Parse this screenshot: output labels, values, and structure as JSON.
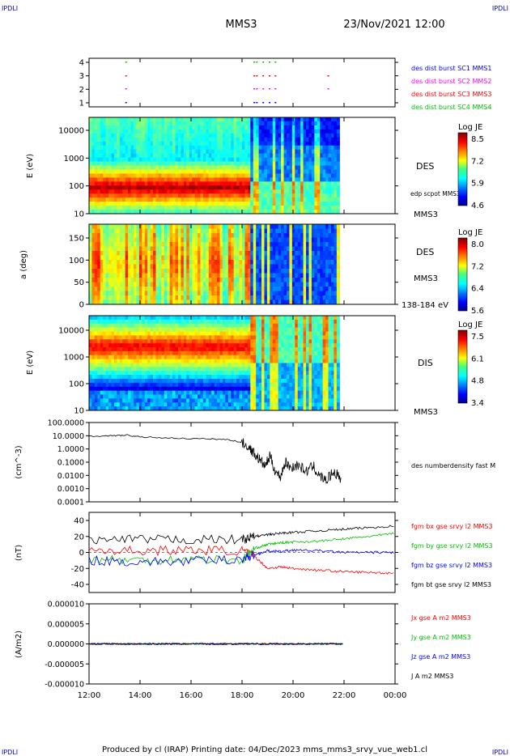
{
  "header": {
    "corner_tl": "IPDLI",
    "corner_tr": "IPDLI",
    "corner_bl": "IPDLI",
    "corner_br": "IPDLI",
    "mission": "MMS3",
    "datetime": "23/Nov/2021 12:00"
  },
  "footer": {
    "text": "Produced by cl (IRAP)   Printing date: 04/Dec/2023   mms_mms3_srvy_vue_web1.cl"
  },
  "time_axis": {
    "ticks": [
      "12:00",
      "14:00",
      "16:00",
      "18:00",
      "20:00",
      "22:00",
      "00:00"
    ],
    "range_hours": [
      12,
      24
    ]
  },
  "chart_data": [
    {
      "type": "scatter",
      "id": "burst",
      "y_ticks": [
        "4",
        "3",
        "2",
        "1"
      ],
      "legend": [
        {
          "label": "des dist burst SC1 MMS1",
          "color": "#0000ff"
        },
        {
          "label": "des dist burst SC2 MMS2",
          "color": "#ff00ff"
        },
        {
          "label": "des dist burst SC3 MMS3",
          "color": "#ff0000"
        },
        {
          "label": "des dist burst SC4 MMS4",
          "color": "#00c000"
        }
      ],
      "marks_hours": [
        13.42,
        18.45,
        18.55,
        18.8,
        19.05,
        19.28,
        21.35
      ]
    },
    {
      "type": "heatmap",
      "id": "des-energy",
      "ylabel": "E (eV)",
      "y_ticks": [
        "10000",
        "1000",
        "100",
        "10"
      ],
      "colorbar_title": "Log JE",
      "colorbar_ticks": [
        "8.5",
        "7.2",
        "5.9",
        "4.6"
      ],
      "labels": [
        "DES",
        "edp scpot MMS3",
        "MMS3"
      ]
    },
    {
      "type": "heatmap",
      "id": "des-pitch",
      "ylabel": "a (deg)",
      "y_ticks": [
        "150",
        "100",
        "50",
        "0"
      ],
      "colorbar_title": "Log JE",
      "colorbar_ticks": [
        "8.0",
        "7.2",
        "6.4",
        "5.6"
      ],
      "labels": [
        "DES",
        "MMS3",
        "138-184 eV"
      ]
    },
    {
      "type": "heatmap",
      "id": "dis-energy",
      "ylabel": "E (eV)",
      "y_ticks": [
        "10000",
        "1000",
        "100",
        "10"
      ],
      "colorbar_title": "Log JE",
      "colorbar_ticks": [
        "7.5",
        "6.1",
        "4.8",
        "3.4"
      ],
      "labels": [
        "DIS",
        "MMS3"
      ]
    },
    {
      "type": "line",
      "id": "density",
      "ylabel": "(cm^-3)",
      "y_ticks": [
        "100.0000",
        "10.0000",
        "1.0000",
        "0.1000",
        "0.0100",
        "0.0010",
        "0.0001"
      ],
      "ylim": [
        0.0001,
        100
      ],
      "series": [
        {
          "name": "des numberdensity fast M",
          "color": "#000000",
          "x": [
            12.0,
            13.0,
            13.5,
            14.0,
            15.0,
            16.0,
            17.0,
            17.5,
            18.0,
            18.3,
            18.5,
            18.7,
            18.9,
            19.1,
            19.3,
            19.5,
            19.7,
            19.9,
            20.2,
            20.5,
            20.8,
            21.0,
            21.3,
            21.6,
            21.9
          ],
          "values": [
            9,
            10,
            11,
            8,
            7,
            6,
            5.5,
            5,
            3,
            1.2,
            0.4,
            0.15,
            0.05,
            0.3,
            0.02,
            0.008,
            0.1,
            0.04,
            0.06,
            0.02,
            0.05,
            0.01,
            0.004,
            0.02,
            0.005
          ]
        }
      ]
    },
    {
      "type": "line",
      "id": "field",
      "ylabel": "(nT)",
      "y_ticks": [
        "40",
        "20",
        "0",
        "-20",
        "-40"
      ],
      "ylim": [
        -50,
        50
      ],
      "series": [
        {
          "name": "fgm bx gse srvy l2 MMS3",
          "color": "#ff0000",
          "x": [
            12,
            14,
            16,
            18,
            18.5,
            19,
            19.5,
            20,
            21,
            22,
            23,
            24
          ],
          "values": [
            3,
            2,
            3,
            2,
            -5,
            -20,
            -18,
            -20,
            -22,
            -24,
            -25,
            -26
          ]
        },
        {
          "name": "fgm by gse srvy l2 MMS3",
          "color": "#00c000",
          "x": [
            12,
            14,
            16,
            18,
            18.5,
            19,
            19.5,
            20,
            21,
            22,
            23,
            24
          ],
          "values": [
            -8,
            -10,
            -8,
            -10,
            5,
            10,
            12,
            13,
            14,
            17,
            20,
            24
          ]
        },
        {
          "name": "fgm bz gse srvy l2 MMS3",
          "color": "#0000ff",
          "x": [
            12,
            14,
            16,
            18,
            18.5,
            19,
            19.5,
            20,
            21,
            22,
            23,
            24
          ],
          "values": [
            -10,
            -12,
            -11,
            -8,
            -3,
            2,
            1,
            3,
            2,
            0,
            0,
            0
          ]
        },
        {
          "name": "fgm bt gse srvy l2 MMS3",
          "color": "#000000",
          "x": [
            12,
            14,
            16,
            18,
            18.5,
            19,
            19.5,
            20,
            21,
            22,
            23,
            24
          ],
          "values": [
            15,
            16,
            16,
            16,
            20,
            22,
            24,
            25,
            27,
            29,
            31,
            33
          ]
        }
      ]
    },
    {
      "type": "line",
      "id": "current",
      "ylabel": "(A/m2)",
      "y_ticks": [
        "0.000010",
        "0.000005",
        "0.000000",
        "-0.000005",
        "-0.000010"
      ],
      "ylim": [
        -1e-05,
        1e-05
      ],
      "series": [
        {
          "name": "Jx gse A m2 MMS3",
          "color": "#ff0000",
          "x": [
            12,
            22
          ],
          "values": [
            0,
            0
          ]
        },
        {
          "name": "Jy gse A m2 MMS3",
          "color": "#00c000",
          "x": [
            12,
            22
          ],
          "values": [
            0,
            0
          ]
        },
        {
          "name": "Jz gse A m2 MMS3",
          "color": "#0000ff",
          "x": [
            12,
            22
          ],
          "values": [
            0,
            0
          ]
        },
        {
          "name": "J A m2 MMS3",
          "color": "#000000",
          "x": [
            12,
            22
          ],
          "values": [
            0,
            0
          ]
        }
      ]
    }
  ]
}
